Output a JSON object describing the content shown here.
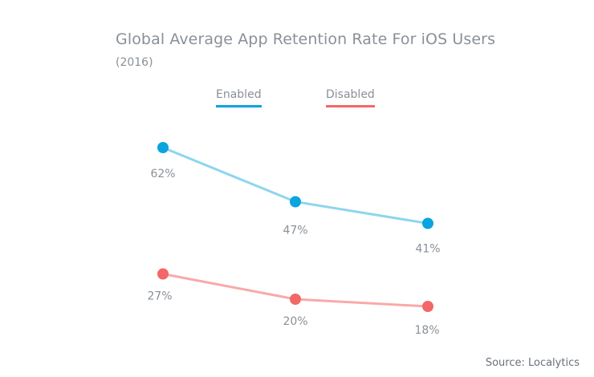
{
  "chart_data": {
    "type": "line",
    "title": "Global Average App Retention Rate For iOS Users",
    "subtitle": "(2016)",
    "categories": [
      "",
      "",
      ""
    ],
    "series": [
      {
        "name": "Enabled",
        "values": [
          62,
          47,
          41
        ],
        "labels": [
          "62%",
          "47%",
          "41%"
        ],
        "marker_color": "#0aa4de",
        "line_color": "#8dd6ee"
      },
      {
        "name": "Disabled",
        "values": [
          27,
          20,
          18
        ],
        "labels": [
          "27%",
          "20%",
          "18%"
        ],
        "marker_color": "#f46767",
        "line_color": "#f9a9a9"
      }
    ],
    "xlabel": "",
    "ylabel": "",
    "grid": false,
    "legend": "top-center",
    "source": "Source: Localytics"
  }
}
